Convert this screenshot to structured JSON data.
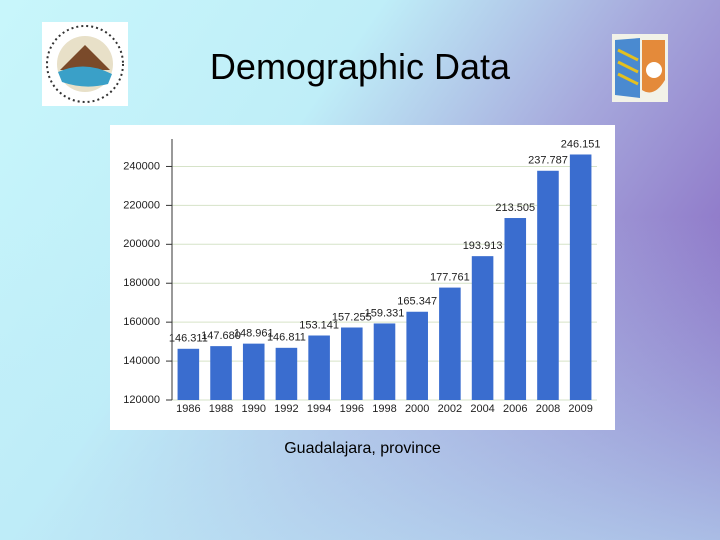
{
  "title": "Demographic Data",
  "caption": "Guadalajara, province",
  "chart_data": {
    "type": "bar",
    "categories": [
      "1986",
      "1988",
      "1990",
      "1992",
      "1994",
      "1996",
      "1998",
      "2000",
      "2002",
      "2004",
      "2006",
      "2008",
      "2009"
    ],
    "values": [
      146311,
      147680,
      148961,
      146811,
      153141,
      157255,
      159331,
      165347,
      177761,
      193913,
      213505,
      237787,
      246151
    ],
    "value_labels": [
      "146.311",
      "147.680",
      "148.961",
      "146.811",
      "153.141",
      "157.255",
      "159.331",
      "165.347",
      "177.761",
      "193.913",
      "213.505",
      "237.787",
      "246.151"
    ],
    "color": "#3a6dcf",
    "ylim": [
      120000,
      250000
    ],
    "yticks": [
      120000,
      140000,
      160000,
      180000,
      200000,
      220000,
      240000
    ],
    "grid": true
  }
}
